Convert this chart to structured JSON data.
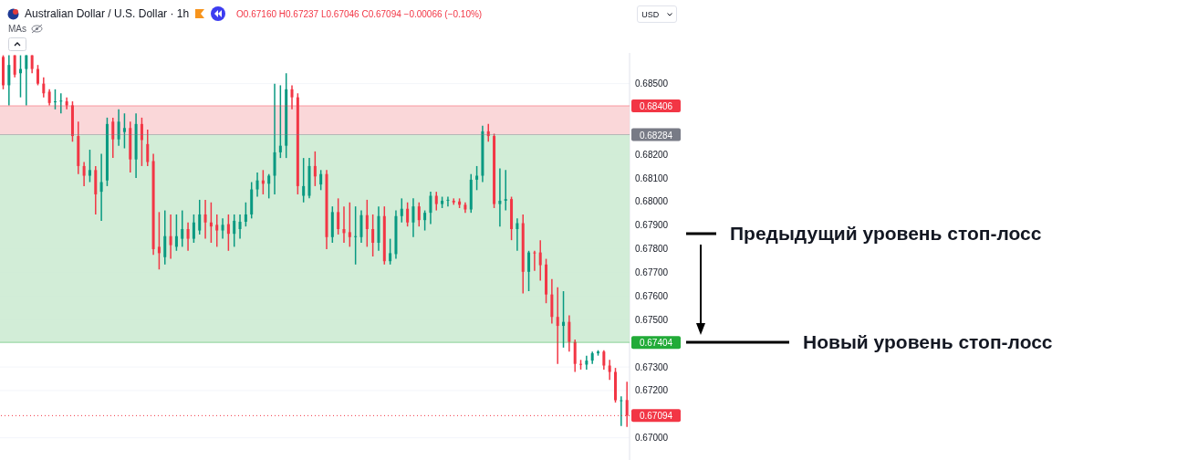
{
  "chart_data": {
    "type": "candlestick",
    "title": "Australian Dollar / U.S. Dollar · 1h",
    "categories": [
      null,
      null,
      null,
      null,
      null,
      null,
      null,
      null,
      null,
      null,
      null,
      null,
      null,
      null,
      null,
      null,
      null,
      null,
      null,
      null,
      null,
      null,
      null,
      null,
      null,
      null,
      null,
      null,
      null,
      null,
      null,
      null,
      null,
      null,
      null,
      null,
      null,
      null,
      null,
      null,
      null,
      null,
      null,
      null,
      null,
      null,
      null,
      null,
      null,
      null,
      null,
      null,
      null,
      null,
      null,
      null,
      null,
      null,
      null,
      null,
      null,
      null,
      null,
      null,
      null,
      null,
      null,
      null,
      null,
      null,
      null,
      null,
      null,
      null,
      null,
      null,
      null,
      null,
      null,
      null,
      null,
      null,
      null,
      null,
      null,
      null,
      null,
      null,
      null,
      null,
      null,
      null,
      null,
      null,
      null,
      null,
      null,
      null,
      null,
      null,
      null,
      null,
      null,
      null,
      null,
      null,
      null,
      null,
      null
    ],
    "ohlc": [
      [
        0.68613,
        0.6862,
        0.68476,
        0.68493
      ],
      [
        0.68493,
        0.6862,
        0.68408,
        0.68579
      ],
      [
        0.6862,
        0.6862,
        0.68527,
        0.68538
      ],
      [
        0.68544,
        0.6862,
        0.68442,
        0.68562
      ],
      [
        0.68562,
        0.6862,
        0.68408,
        0.6862
      ],
      [
        0.6862,
        0.6862,
        0.68544,
        0.68562
      ],
      [
        0.68562,
        0.68579,
        0.68493,
        0.685
      ],
      [
        0.685,
        0.68527,
        0.68442,
        0.68459
      ],
      [
        0.68466,
        0.68476,
        0.68408,
        0.68418
      ],
      [
        0.68421,
        0.68476,
        0.68391,
        0.68425
      ],
      [
        0.68425,
        0.68459,
        0.68374,
        0.68428
      ],
      [
        0.68425,
        0.68442,
        0.68391,
        0.68408
      ],
      [
        0.68408,
        0.68425,
        0.68254,
        0.68278
      ],
      [
        0.68278,
        0.68339,
        0.68117,
        0.68151
      ],
      [
        0.68151,
        0.68168,
        0.68066,
        0.6811
      ],
      [
        0.6811,
        0.6822,
        0.68083,
        0.68134
      ],
      [
        0.68134,
        0.68151,
        0.67946,
        0.68031
      ],
      [
        0.68042,
        0.68203,
        0.67919,
        0.68083
      ],
      [
        0.6809,
        0.68356,
        0.68066,
        0.68329
      ],
      [
        0.68339,
        0.68356,
        0.68185,
        0.68264
      ],
      [
        0.68264,
        0.68391,
        0.68237,
        0.68339
      ],
      [
        0.68295,
        0.68374,
        0.68226,
        0.68312
      ],
      [
        0.68312,
        0.68339,
        0.68124,
        0.68179
      ],
      [
        0.68179,
        0.68374,
        0.681,
        0.68329
      ],
      [
        0.68329,
        0.68356,
        0.68151,
        0.68261
      ],
      [
        0.68244,
        0.68305,
        0.68151,
        0.68168
      ],
      [
        0.68172,
        0.68203,
        0.67775,
        0.67799
      ],
      [
        0.67809,
        0.67956,
        0.67713,
        0.67782
      ],
      [
        0.67765,
        0.67963,
        0.67734,
        0.67854
      ],
      [
        0.67854,
        0.67946,
        0.67758,
        0.67816
      ],
      [
        0.67809,
        0.67946,
        0.67792,
        0.67854
      ],
      [
        0.67843,
        0.67963,
        0.67809,
        0.67884
      ],
      [
        0.67884,
        0.67912,
        0.67792,
        0.67843
      ],
      [
        0.67843,
        0.67946,
        0.67826,
        0.67912
      ],
      [
        0.67878,
        0.68008,
        0.67861,
        0.67946
      ],
      [
        0.67946,
        0.68008,
        0.67843,
        0.67912
      ],
      [
        0.67912,
        0.67997,
        0.67826,
        0.67895
      ],
      [
        0.67902,
        0.67946,
        0.67809,
        0.67878
      ],
      [
        0.67878,
        0.67929,
        0.67843,
        0.67902
      ],
      [
        0.67905,
        0.67946,
        0.67792,
        0.67864
      ],
      [
        0.67864,
        0.67946,
        0.67809,
        0.67919
      ],
      [
        0.67884,
        0.67946,
        0.67843,
        0.67915
      ],
      [
        0.67915,
        0.67997,
        0.67895,
        0.67946
      ],
      [
        0.67946,
        0.68083,
        0.67929,
        0.68052
      ],
      [
        0.68052,
        0.68124,
        0.68021,
        0.6809
      ],
      [
        0.6809,
        0.68134,
        0.68031,
        0.68076
      ],
      [
        0.68076,
        0.68117,
        0.68014,
        0.6811
      ],
      [
        0.6811,
        0.685,
        0.68031,
        0.68209
      ],
      [
        0.68209,
        0.68493,
        0.68185,
        0.68237
      ],
      [
        0.68237,
        0.68544,
        0.68185,
        0.68476
      ],
      [
        0.68476,
        0.68493,
        0.68391,
        0.68442
      ],
      [
        0.68442,
        0.68459,
        0.68031,
        0.68066
      ],
      [
        0.68025,
        0.68185,
        0.67997,
        0.68066
      ],
      [
        0.68025,
        0.68185,
        0.68014,
        0.68151
      ],
      [
        0.68151,
        0.68213,
        0.68066,
        0.68107
      ],
      [
        0.68073,
        0.68134,
        0.68049,
        0.68117
      ],
      [
        0.68117,
        0.68134,
        0.67799,
        0.6785
      ],
      [
        0.6785,
        0.6798,
        0.67826,
        0.67956
      ],
      [
        0.67956,
        0.68014,
        0.67861,
        0.67884
      ],
      [
        0.67884,
        0.6798,
        0.67826,
        0.67867
      ],
      [
        0.67871,
        0.67997,
        0.67809,
        0.6785
      ],
      [
        0.6785,
        0.6798,
        0.67734,
        0.67854
      ],
      [
        0.6785,
        0.67963,
        0.67826,
        0.67943
      ],
      [
        0.67943,
        0.68008,
        0.67809,
        0.67884
      ],
      [
        0.67884,
        0.67946,
        0.67768,
        0.67826
      ],
      [
        0.67826,
        0.6798,
        0.67792,
        0.67939
      ],
      [
        0.67939,
        0.6798,
        0.67734,
        0.67748
      ],
      [
        0.67748,
        0.67843,
        0.67734,
        0.67782
      ],
      [
        0.67778,
        0.67963,
        0.67758,
        0.67939
      ],
      [
        0.67939,
        0.68014,
        0.67912,
        0.6797
      ],
      [
        0.6797,
        0.67997,
        0.67895,
        0.67912
      ],
      [
        0.67912,
        0.68014,
        0.6785,
        0.6798
      ],
      [
        0.6798,
        0.67997,
        0.67895,
        0.67922
      ],
      [
        0.67922,
        0.67963,
        0.67878,
        0.67953
      ],
      [
        0.67953,
        0.68042,
        0.67905,
        0.68025
      ],
      [
        0.68025,
        0.68042,
        0.67963,
        0.6799
      ],
      [
        0.6799,
        0.68021,
        0.67973,
        0.68004
      ],
      [
        0.68004,
        0.68021,
        0.6798,
        0.68008
      ],
      [
        0.68004,
        0.68014,
        0.67987,
        0.67997
      ],
      [
        0.68001,
        0.68014,
        0.67973,
        0.67987
      ],
      [
        0.67987,
        0.67997,
        0.67953,
        0.67967
      ],
      [
        0.67967,
        0.68117,
        0.67953,
        0.68093
      ],
      [
        0.68093,
        0.68151,
        0.68049,
        0.6811
      ],
      [
        0.6811,
        0.68322,
        0.68083,
        0.68298
      ],
      [
        0.68298,
        0.68329,
        0.68254,
        0.68278
      ],
      [
        0.68278,
        0.68288,
        0.67973,
        0.6799
      ],
      [
        0.6799,
        0.68141,
        0.67895,
        0.68004
      ],
      [
        0.68004,
        0.68134,
        0.67963,
        0.68011
      ],
      [
        0.68011,
        0.68021,
        0.67837,
        0.67884
      ],
      [
        0.67884,
        0.67929,
        0.67792,
        0.67909
      ],
      [
        0.67909,
        0.67946,
        0.67611,
        0.67703
      ],
      [
        0.67703,
        0.67792,
        0.67621,
        0.67785
      ],
      [
        0.67785,
        0.67792,
        0.67707,
        0.67782
      ],
      [
        0.67785,
        0.67837,
        0.67666,
        0.67731
      ],
      [
        0.67734,
        0.67758,
        0.6757,
        0.67607
      ],
      [
        0.67607,
        0.67672,
        0.67484,
        0.67512
      ],
      [
        0.67512,
        0.67638,
        0.67313,
        0.67474
      ],
      [
        0.67474,
        0.67621,
        0.67382,
        0.67491
      ],
      [
        0.67491,
        0.67519,
        0.67365,
        0.67406
      ],
      [
        0.67406,
        0.67416,
        0.67279,
        0.67313
      ],
      [
        0.67313,
        0.6733,
        0.67289,
        0.6731
      ],
      [
        0.6731,
        0.67348,
        0.67289,
        0.67327
      ],
      [
        0.67327,
        0.67365,
        0.67313,
        0.67358
      ],
      [
        0.67358,
        0.67371,
        0.67348,
        0.67365
      ],
      [
        0.67365,
        0.67371,
        0.67289,
        0.67306
      ],
      [
        0.67306,
        0.6733,
        0.67245,
        0.67279
      ],
      [
        0.67279,
        0.67296,
        0.67149,
        0.67159
      ],
      [
        0.67156,
        0.67176,
        0.6705,
        0.67159
      ],
      [
        0.6716,
        0.67237,
        0.67046,
        0.67094
      ]
    ],
    "ylim": [
      0.66906,
      0.6863
    ],
    "yticks": [
      {
        "value": 0.685,
        "label": "0.68500"
      },
      {
        "value": 0.682,
        "label": "0.68200"
      },
      {
        "value": 0.681,
        "label": "0.68100"
      },
      {
        "value": 0.68,
        "label": "0.68000"
      },
      {
        "value": 0.679,
        "label": "0.67900"
      },
      {
        "value": 0.678,
        "label": "0.67800"
      },
      {
        "value": 0.677,
        "label": "0.67700"
      },
      {
        "value": 0.676,
        "label": "0.67600"
      },
      {
        "value": 0.675,
        "label": "0.67500"
      },
      {
        "value": 0.673,
        "label": "0.67300"
      },
      {
        "value": 0.672,
        "label": "0.67200"
      },
      {
        "value": 0.67,
        "label": "0.67000"
      }
    ],
    "tick_labels": "y",
    "grid": "y",
    "bands": [
      {
        "axis": "y",
        "from": 0.68284,
        "to": 0.68406,
        "color": "#f9d3d5"
      },
      {
        "axis": "y",
        "from": 0.67404,
        "to": 0.68284,
        "color": "#cdebd3"
      }
    ],
    "ref_lines": [
      {
        "axis": "y",
        "value": 0.68406,
        "label": "0.68406",
        "color": "#f23645"
      },
      {
        "axis": "y",
        "value": 0.68284,
        "label": "0.68284",
        "color": "#787b86"
      },
      {
        "axis": "y",
        "value": 0.67404,
        "label": "0.67404",
        "color": "#22ab38"
      },
      {
        "axis": "y",
        "value": 0.67094,
        "label": "0.67094",
        "color": "#f23645",
        "line_style": "dotted"
      }
    ],
    "annotations": [
      "O0.67160 H0.67237 L0.67046 C0.67094 −0.00066 (−0.10%)",
      "MAs",
      "USD",
      "Предыдущий уровень стоп-лосс",
      "Новый уровень стоп-лосс"
    ]
  }
}
